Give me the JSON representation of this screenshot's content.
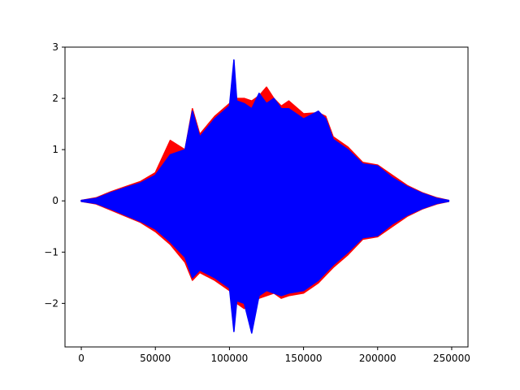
{
  "chart_data": {
    "type": "line",
    "title": "",
    "xlabel": "",
    "ylabel": "",
    "xlim": [
      -11000,
      261000
    ],
    "ylim": [
      -2.85,
      3.0
    ],
    "grid": false,
    "legend": "none",
    "x_ticks": [
      {
        "value": 0,
        "label": "0"
      },
      {
        "value": 50000,
        "label": "50000"
      },
      {
        "value": 100000,
        "label": "100000"
      },
      {
        "value": 150000,
        "label": "150000"
      },
      {
        "value": 200000,
        "label": "200000"
      },
      {
        "value": 250000,
        "label": "250000"
      }
    ],
    "y_ticks": [
      {
        "value": -2,
        "label": "−2"
      },
      {
        "value": -1,
        "label": "−1"
      },
      {
        "value": 0,
        "label": "0"
      },
      {
        "value": 1,
        "label": "1"
      },
      {
        "value": 2,
        "label": "2"
      },
      {
        "value": 3,
        "label": "3"
      }
    ],
    "series": [
      {
        "color": "#ff0000",
        "x": [
          0,
          10000,
          20000,
          30000,
          40000,
          50000,
          60000,
          70000,
          75000,
          80000,
          90000,
          100000,
          105000,
          110000,
          115000,
          120000,
          125000,
          130000,
          135000,
          140000,
          150000,
          160000,
          165000,
          170000,
          180000,
          190000,
          200000,
          210000,
          220000,
          230000,
          240000,
          248000
        ],
        "upper": [
          0.01,
          0.06,
          0.18,
          0.28,
          0.38,
          0.55,
          1.18,
          1.0,
          1.8,
          1.3,
          1.65,
          1.9,
          2.0,
          2.0,
          1.95,
          2.05,
          2.22,
          2.0,
          1.85,
          1.95,
          1.7,
          1.72,
          1.65,
          1.25,
          1.05,
          0.75,
          0.7,
          0.5,
          0.3,
          0.16,
          0.06,
          0.01
        ],
        "lower": [
          -0.01,
          -0.06,
          -0.18,
          -0.3,
          -0.42,
          -0.6,
          -0.85,
          -1.2,
          -1.55,
          -1.4,
          -1.55,
          -1.75,
          -2.0,
          -2.1,
          -2.0,
          -1.9,
          -1.85,
          -1.8,
          -1.9,
          -1.85,
          -1.8,
          -1.6,
          -1.45,
          -1.3,
          -1.05,
          -0.75,
          -0.7,
          -0.5,
          -0.3,
          -0.16,
          -0.06,
          -0.01
        ]
      },
      {
        "color": "#0000ff",
        "x": [
          0,
          10000,
          20000,
          30000,
          40000,
          50000,
          60000,
          70000,
          75000,
          80000,
          90000,
          100000,
          103000,
          105000,
          110000,
          115000,
          120000,
          125000,
          130000,
          135000,
          140000,
          150000,
          160000,
          165000,
          170000,
          180000,
          190000,
          200000,
          210000,
          220000,
          230000,
          240000,
          248000
        ],
        "upper": [
          0.01,
          0.05,
          0.16,
          0.26,
          0.35,
          0.5,
          0.9,
          1.0,
          1.75,
          1.25,
          1.6,
          1.85,
          2.75,
          1.95,
          1.9,
          1.8,
          2.1,
          1.9,
          2.0,
          1.8,
          1.8,
          1.6,
          1.75,
          1.6,
          1.2,
          1.0,
          0.72,
          0.68,
          0.45,
          0.28,
          0.15,
          0.05,
          0.01
        ],
        "lower": [
          -0.01,
          -0.05,
          -0.16,
          -0.28,
          -0.4,
          -0.55,
          -0.8,
          -1.1,
          -1.5,
          -1.35,
          -1.5,
          -1.7,
          -2.55,
          -1.95,
          -2.0,
          -2.58,
          -1.85,
          -1.75,
          -1.8,
          -1.85,
          -1.8,
          -1.75,
          -1.55,
          -1.4,
          -1.25,
          -1.0,
          -0.72,
          -0.68,
          -0.45,
          -0.28,
          -0.15,
          -0.05,
          -0.01
        ]
      }
    ]
  }
}
